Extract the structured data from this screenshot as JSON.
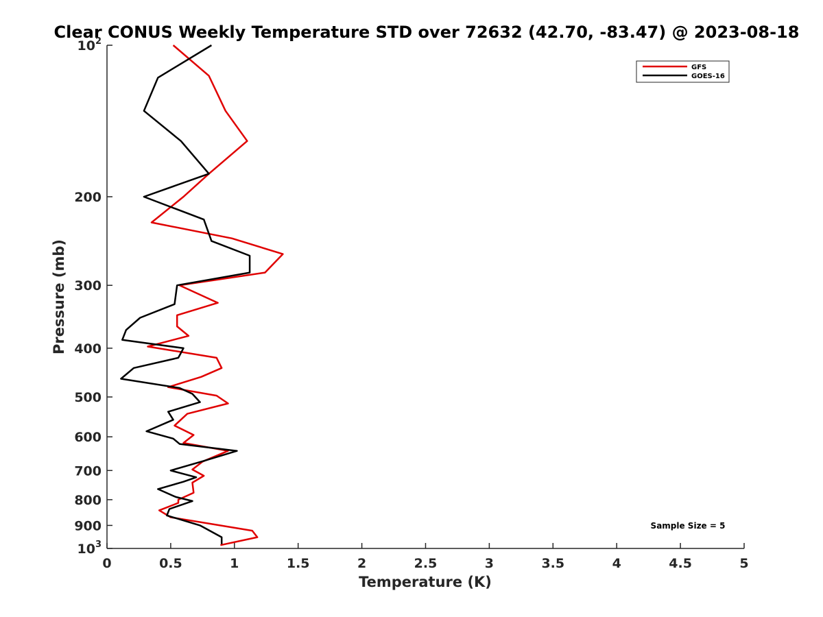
{
  "chart_data": {
    "type": "line",
    "title": "Clear CONUS Weekly Temperature STD over 72632 (42.70, -83.47) @ 2023-08-18",
    "xlabel": "Temperature (K)",
    "ylabel": "Pressure (mb)",
    "xlim": [
      0,
      5
    ],
    "ylim": [
      100,
      1000
    ],
    "y_scale": "log",
    "y_reversed": true,
    "x_ticks": [
      {
        "value": 0,
        "label": "0"
      },
      {
        "value": 0.5,
        "label": "0.5"
      },
      {
        "value": 1,
        "label": "1"
      },
      {
        "value": 1.5,
        "label": "1.5"
      },
      {
        "value": 2,
        "label": "2"
      },
      {
        "value": 2.5,
        "label": "2.5"
      },
      {
        "value": 3,
        "label": "3"
      },
      {
        "value": 3.5,
        "label": "3.5"
      },
      {
        "value": 4,
        "label": "4"
      },
      {
        "value": 4.5,
        "label": "4.5"
      },
      {
        "value": 5,
        "label": "5"
      }
    ],
    "y_ticks": [
      {
        "value": 100,
        "base": "10",
        "exp": "2"
      },
      {
        "value": 200,
        "label": "200"
      },
      {
        "value": 300,
        "label": "300"
      },
      {
        "value": 400,
        "label": "400"
      },
      {
        "value": 500,
        "label": "500"
      },
      {
        "value": 600,
        "label": "600"
      },
      {
        "value": 700,
        "label": "700"
      },
      {
        "value": 800,
        "label": "800"
      },
      {
        "value": 900,
        "label": "900"
      },
      {
        "value": 1000,
        "base": "10",
        "exp": "3"
      }
    ],
    "grid": false,
    "legend_position": "top-right",
    "series": [
      {
        "name": "GFS",
        "color": "#e00000",
        "points": [
          [
            0.52,
            100
          ],
          [
            0.8,
            115
          ],
          [
            0.93,
            135
          ],
          [
            1.1,
            155
          ],
          [
            0.8,
            180
          ],
          [
            0.6,
            200
          ],
          [
            0.35,
            225
          ],
          [
            0.98,
            242
          ],
          [
            1.38,
            260
          ],
          [
            1.24,
            283
          ],
          [
            0.57,
            300
          ],
          [
            0.87,
            325
          ],
          [
            0.55,
            344
          ],
          [
            0.55,
            362
          ],
          [
            0.64,
            378
          ],
          [
            0.32,
            397
          ],
          [
            0.86,
            418
          ],
          [
            0.9,
            438
          ],
          [
            0.74,
            456
          ],
          [
            0.48,
            478
          ],
          [
            0.86,
            497
          ],
          [
            0.95,
            515
          ],
          [
            0.63,
            540
          ],
          [
            0.53,
            570
          ],
          [
            0.68,
            595
          ],
          [
            0.6,
            617
          ],
          [
            0.95,
            640
          ],
          [
            0.75,
            672
          ],
          [
            0.67,
            697
          ],
          [
            0.76,
            717
          ],
          [
            0.67,
            740
          ],
          [
            0.68,
            775
          ],
          [
            0.56,
            800
          ],
          [
            0.56,
            812
          ],
          [
            0.41,
            840
          ],
          [
            0.5,
            867
          ],
          [
            1.14,
            922
          ],
          [
            1.18,
            950
          ],
          [
            0.89,
            985
          ]
        ]
      },
      {
        "name": "GOES-16",
        "color": "#000000",
        "points": [
          [
            0.82,
            100
          ],
          [
            0.4,
            116
          ],
          [
            0.29,
            135
          ],
          [
            0.58,
            155
          ],
          [
            0.8,
            180
          ],
          [
            0.29,
            200
          ],
          [
            0.76,
            222
          ],
          [
            0.82,
            245
          ],
          [
            1.12,
            262
          ],
          [
            1.12,
            283
          ],
          [
            0.55,
            300
          ],
          [
            0.53,
            327
          ],
          [
            0.26,
            348
          ],
          [
            0.15,
            368
          ],
          [
            0.12,
            385
          ],
          [
            0.6,
            400
          ],
          [
            0.56,
            418
          ],
          [
            0.21,
            438
          ],
          [
            0.11,
            460
          ],
          [
            0.57,
            480
          ],
          [
            0.67,
            493
          ],
          [
            0.73,
            512
          ],
          [
            0.48,
            535
          ],
          [
            0.52,
            555
          ],
          [
            0.31,
            585
          ],
          [
            0.52,
            605
          ],
          [
            0.57,
            620
          ],
          [
            1.02,
            640
          ],
          [
            0.76,
            670
          ],
          [
            0.5,
            700
          ],
          [
            0.7,
            722
          ],
          [
            0.6,
            737
          ],
          [
            0.4,
            762
          ],
          [
            0.54,
            790
          ],
          [
            0.67,
            805
          ],
          [
            0.49,
            835
          ],
          [
            0.47,
            860
          ],
          [
            0.73,
            900
          ],
          [
            0.9,
            950
          ],
          [
            0.9,
            980
          ]
        ]
      }
    ],
    "annotation": "Sample Size = 5"
  }
}
